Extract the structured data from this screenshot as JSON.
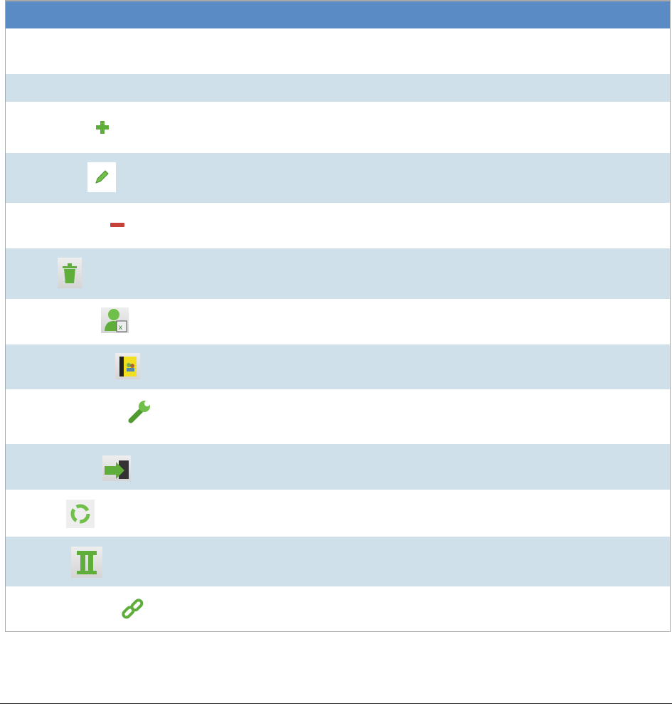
{
  "colors": {
    "header": "#5b8bc4",
    "row_alt": "#cfe0ea",
    "row": "#ffffff",
    "icon_green": "#5fae3c"
  },
  "rows": [
    {
      "icon": null
    },
    {
      "icon": null
    },
    {
      "icon": "plus-icon"
    },
    {
      "icon": "pencil-icon"
    },
    {
      "icon": "minus-icon"
    },
    {
      "icon": "trash-icon"
    },
    {
      "icon": "user-excel-export-icon"
    },
    {
      "icon": "address-book-icon"
    },
    {
      "icon": "wrench-icon"
    },
    {
      "icon": "export-save-icon"
    },
    {
      "icon": "recycle-icon"
    },
    {
      "icon": "pillar-icon"
    },
    {
      "icon": "link-icon"
    }
  ]
}
